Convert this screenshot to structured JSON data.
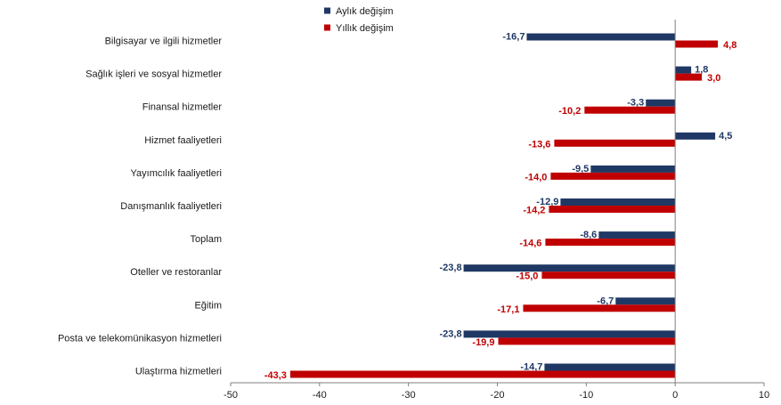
{
  "chart_data": {
    "type": "bar",
    "orientation": "horizontal",
    "categories": [
      "Bilgisayar ve ilgili hizmetler",
      "Sağlık işleri ve sosyal hizmetler",
      "Finansal hizmetler",
      "Hizmet faaliyetleri",
      "Yayımcılık faaliyetleri",
      "Danışmanlık faaliyetleri",
      "Toplam",
      "Oteller ve restoranlar",
      "Eğitim",
      "Posta ve telekomünikasyon hizmetleri",
      "Ulaştırma hizmetleri"
    ],
    "series": [
      {
        "name": "Aylık değişim",
        "color": "#1f3864",
        "values": [
          -16.7,
          1.8,
          -3.3,
          4.5,
          -9.5,
          -12.9,
          -8.6,
          -23.8,
          -6.7,
          -23.8,
          -14.7
        ],
        "labels": [
          "-16,7",
          "1,8",
          "-3,3",
          "4,5",
          "-9,5",
          "-12,9",
          "-8,6",
          "-23,8",
          "-6,7",
          "-23,8",
          "-14,7"
        ]
      },
      {
        "name": "Yıllık değişim",
        "color": "#c00000",
        "values": [
          4.8,
          3.0,
          -10.2,
          -13.6,
          -14.0,
          -14.2,
          -14.6,
          -15.0,
          -17.1,
          -19.9,
          -43.3
        ],
        "labels": [
          "4,8",
          "3,0",
          "-10,2",
          "-13,6",
          "-14,0",
          "-14,2",
          "-14,6",
          "-15,0",
          "-17,1",
          "-19,9",
          "-43,3"
        ]
      }
    ],
    "xlim": [
      -50,
      10
    ],
    "xticks": [
      -50,
      -40,
      -30,
      -20,
      -10,
      0,
      10
    ],
    "xtick_labels": [
      "-50",
      "-40",
      "-30",
      "-20",
      "-10",
      "0",
      "10"
    ],
    "grid": false,
    "legend_position": "top-center"
  }
}
